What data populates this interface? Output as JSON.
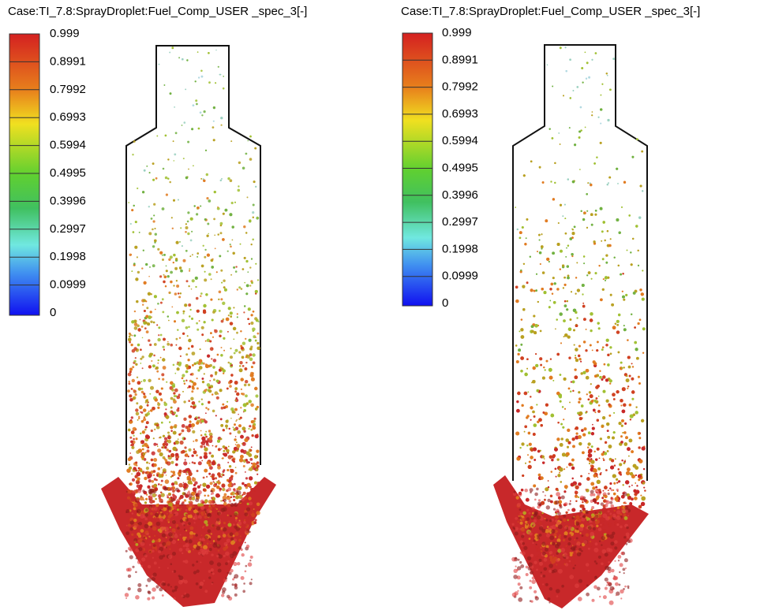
{
  "panels": [
    {
      "title": "Case:TI_7.8:SprayDroplet:Fuel_Comp_USER _spec_3[-]",
      "colorbar": [
        "0.999",
        "0.8991",
        "0.7992",
        "0.6993",
        "0.5994",
        "0.4995",
        "0.3996",
        "0.2997",
        "0.1998",
        "0.0999",
        "0"
      ]
    },
    {
      "title": "Case:TI_7.8:SprayDroplet:Fuel_Comp_USER _spec_3[-]",
      "colorbar": [
        "0.999",
        "0.8991",
        "0.7992",
        "0.6993",
        "0.5994",
        "0.4995",
        "0.3996",
        "0.2997",
        "0.1998",
        "0.0999",
        "0"
      ]
    }
  ]
}
